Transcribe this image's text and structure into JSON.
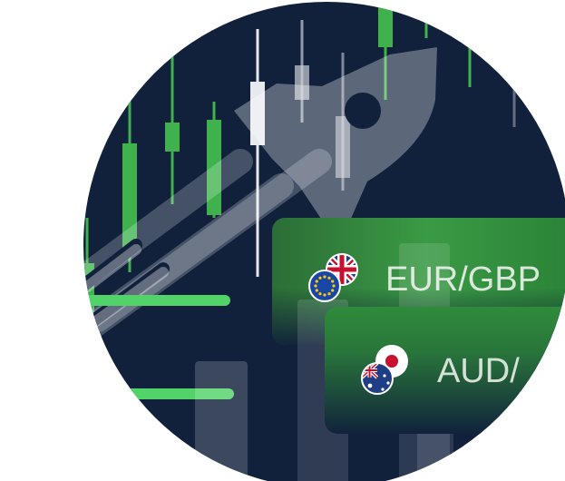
{
  "illustration": {
    "pairs": [
      {
        "label": "EUR/GBP",
        "flags": [
          "eu-flag-icon",
          "uk-flag-icon"
        ]
      },
      {
        "label": "AUD/",
        "flags": [
          "australia-flag-icon",
          "japan-flag-icon"
        ]
      }
    ],
    "icons": [
      "rocket-icon",
      "candlestick-chart-icon"
    ],
    "colors": {
      "background": "#11203b",
      "accent_green": "#52d36a",
      "card_green": "#2f8b3b",
      "candle_green": "#3fb24e",
      "candle_grey": "#c9ced6"
    }
  }
}
